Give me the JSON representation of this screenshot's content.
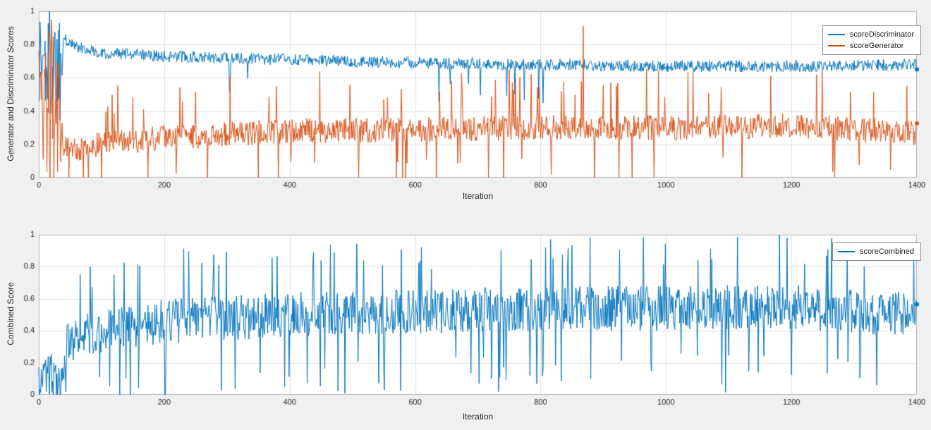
{
  "figure": {
    "background": "#f0f0f0",
    "plot_background": "#ffffff",
    "grid_color": "#e2e2e2",
    "axis_color": "#b0b0b0",
    "tick_label_color": "#262626",
    "legend_border": "#8c8c8c"
  },
  "chart_data": [
    {
      "type": "line",
      "title": "",
      "xlabel": "Iteration",
      "ylabel": "Generator and Discriminator Scores",
      "xlim": [
        0,
        1400
      ],
      "ylim": [
        0,
        1
      ],
      "xticks": [
        0,
        200,
        400,
        600,
        800,
        1000,
        1200,
        1400
      ],
      "yticks": [
        0,
        0.2,
        0.4,
        0.6,
        0.8,
        1
      ],
      "grid": true,
      "legend_position": "top-right",
      "series": [
        {
          "name": "scoreDiscriminator",
          "color": "#0072BD",
          "seed": 1337,
          "warmup": {
            "until": 38,
            "mean": 0.7,
            "amplitude": 0.38
          },
          "mean_x": [
            38,
            60,
            100,
            200,
            300,
            400,
            600,
            800,
            1000,
            1200,
            1400
          ],
          "mean_y": [
            0.84,
            0.79,
            0.75,
            0.73,
            0.72,
            0.71,
            0.69,
            0.68,
            0.67,
            0.67,
            0.68
          ],
          "noise_amplitude": 0.035,
          "spikes_down": {
            "probability": 0.012,
            "max_depth": 0.22
          },
          "spikes_up": {
            "probability": 0,
            "max_height": 0
          },
          "forced_points": []
        },
        {
          "name": "scoreGenerator",
          "color": "#D95319",
          "seed": 2024,
          "warmup": {
            "until": 38,
            "mean": 0.45,
            "amplitude": 0.5
          },
          "mean_x": [
            38,
            60,
            100,
            200,
            300,
            400,
            600,
            800,
            1000,
            1200,
            1400
          ],
          "mean_y": [
            0.18,
            0.17,
            0.2,
            0.24,
            0.26,
            0.28,
            0.29,
            0.3,
            0.3,
            0.31,
            0.27
          ],
          "noise_amplitude": 0.075,
          "spikes_down": {
            "probability": 0.03,
            "max_depth": 0.3
          },
          "spikes_up": {
            "probability": 0.035,
            "max_height": 0.28
          },
          "forced_points": [
            {
              "x": 868,
              "y": 0.91
            }
          ]
        }
      ]
    },
    {
      "type": "line",
      "title": "",
      "xlabel": "Iteration",
      "ylabel": "Combined Score",
      "xlim": [
        0,
        1400
      ],
      "ylim": [
        0,
        1
      ],
      "xticks": [
        0,
        200,
        400,
        600,
        800,
        1000,
        1200,
        1400
      ],
      "yticks": [
        0,
        0.2,
        0.4,
        0.6,
        0.8,
        1
      ],
      "grid": true,
      "legend_position": "top-right",
      "series": [
        {
          "name": "scoreCombined",
          "color": "#0072BD",
          "seed": 777,
          "warmup": {
            "until": 45,
            "mean": 0.12,
            "amplitude": 0.14
          },
          "mean_x": [
            45,
            80,
            120,
            200,
            300,
            400,
            600,
            800,
            1000,
            1200,
            1400
          ],
          "mean_y": [
            0.3,
            0.38,
            0.42,
            0.46,
            0.48,
            0.5,
            0.52,
            0.54,
            0.54,
            0.55,
            0.5
          ],
          "noise_amplitude": 0.14,
          "spikes_down": {
            "probability": 0.04,
            "max_depth": 0.4
          },
          "spikes_up": {
            "probability": 0.04,
            "max_height": 0.32
          },
          "forced_points": []
        }
      ]
    }
  ]
}
